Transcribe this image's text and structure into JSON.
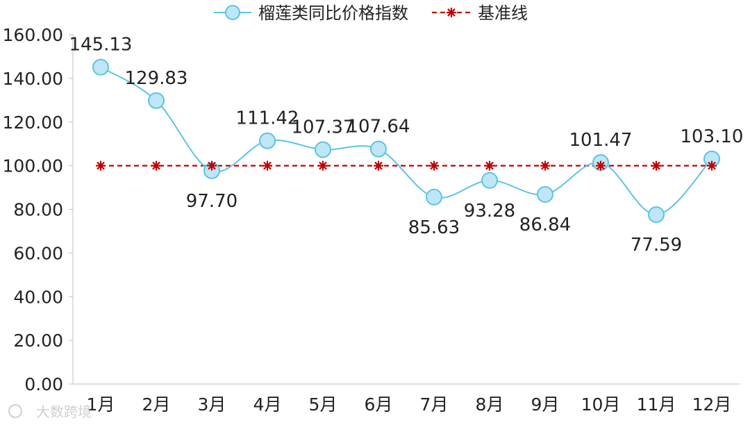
{
  "chart_data": {
    "type": "line",
    "categories": [
      "1月",
      "2月",
      "3月",
      "4月",
      "5月",
      "6月",
      "7月",
      "8月",
      "9月",
      "10月",
      "11月",
      "12月"
    ],
    "series": [
      {
        "name": "榴莲类同比价格指数",
        "values": [
          145.13,
          129.83,
          97.7,
          111.42,
          107.37,
          107.64,
          85.63,
          93.28,
          86.84,
          101.47,
          77.59,
          103.1
        ],
        "labels": [
          "145.13",
          "129.83",
          "97.70",
          "111.42",
          "107.37",
          "107.64",
          "85.63",
          "93.28",
          "86.84",
          "101.47",
          "77.59",
          "103.10"
        ],
        "color": "#5bc3e6",
        "marker_fill": "#bfe6f5",
        "smooth": true
      },
      {
        "name": "基准线",
        "values": [
          100,
          100,
          100,
          100,
          100,
          100,
          100,
          100,
          100,
          100,
          100,
          100
        ],
        "color": "#c00000",
        "dashed": true,
        "marker": "asterisk"
      }
    ],
    "y_ticks": [
      "0.00",
      "20.00",
      "40.00",
      "60.00",
      "80.00",
      "100.00",
      "120.00",
      "140.00",
      "160.00"
    ],
    "ylim": [
      0,
      160
    ],
    "grid": false,
    "legend": "top-center",
    "watermark": "大数跨境"
  }
}
